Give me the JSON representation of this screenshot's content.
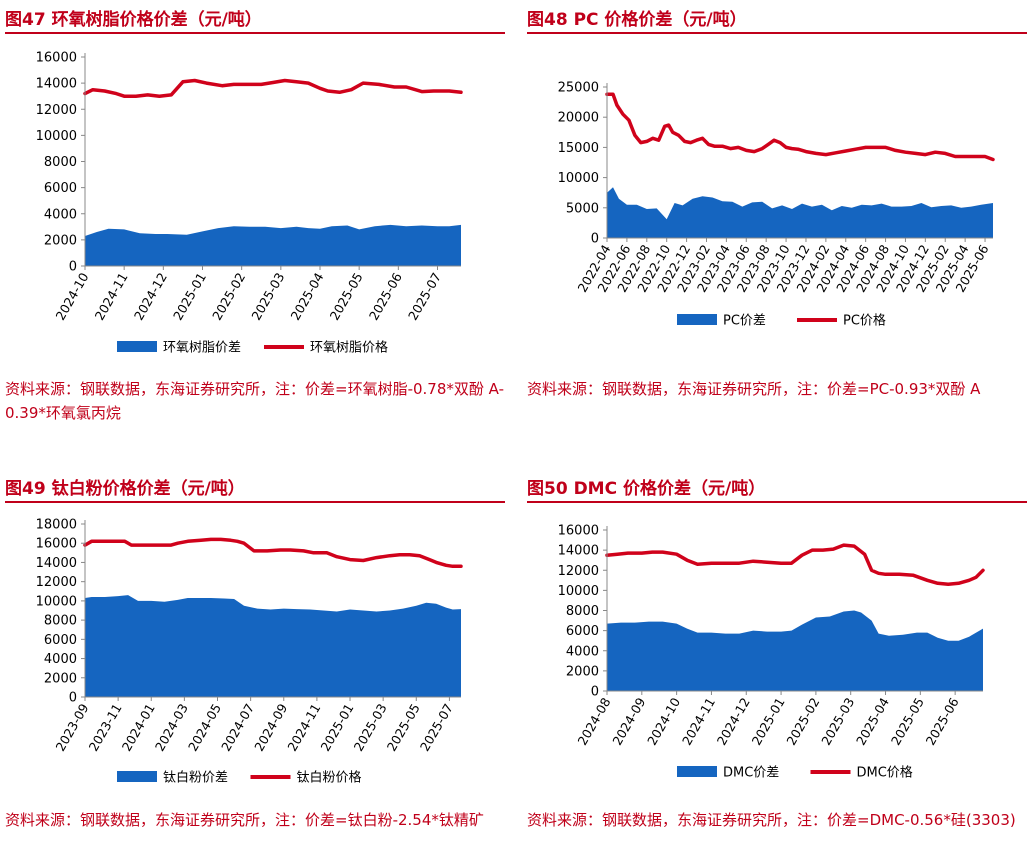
{
  "colors": {
    "accent": "#c0001a",
    "area": "#1565c0",
    "line": "#d0021b"
  },
  "panels": [
    {
      "title": "图47  环氧树脂价格价差（元/吨）",
      "source": "资料来源：钢联数据，东海证券研究所，注：价差=环氧树脂-0.78*双酚 A-0.39*环氧氯丙烷",
      "chart_data": {
        "type": "area",
        "ylim": [
          0,
          16000
        ],
        "yticks": [
          0,
          2000,
          4000,
          6000,
          8000,
          10000,
          12000,
          14000,
          16000
        ],
        "xticks": [
          "2024-10",
          "2024-11",
          "2024-12",
          "2025-01",
          "2025-02",
          "2025-03",
          "2025-04",
          "2025-05",
          "2025-06",
          "2025-07"
        ],
        "xrange": [
          0,
          9.6
        ],
        "series": [
          {
            "name": "环氧树脂价差",
            "kind": "area",
            "x": [
              0,
              0.3,
              0.6,
              1.0,
              1.4,
              1.8,
              2.1,
              2.6,
              3.0,
              3.4,
              3.8,
              4.2,
              4.6,
              5.0,
              5.4,
              5.7,
              6.0,
              6.3,
              6.7,
              7.0,
              7.4,
              7.8,
              8.2,
              8.6,
              9.0,
              9.3,
              9.6
            ],
            "y": [
              2300,
              2600,
              2850,
              2800,
              2500,
              2450,
              2450,
              2400,
              2650,
              2900,
              3050,
              3000,
              3000,
              2900,
              3000,
              2900,
              2850,
              3050,
              3100,
              2800,
              3050,
              3150,
              3050,
              3100,
              3050,
              3050,
              3150
            ]
          },
          {
            "name": "环氧树脂价格",
            "kind": "line",
            "x": [
              0,
              0.2,
              0.5,
              0.8,
              1.0,
              1.3,
              1.6,
              1.9,
              2.2,
              2.5,
              2.8,
              3.1,
              3.5,
              3.8,
              4.1,
              4.5,
              4.8,
              5.1,
              5.4,
              5.7,
              6.0,
              6.2,
              6.5,
              6.8,
              7.1,
              7.5,
              7.9,
              8.2,
              8.6,
              8.9,
              9.3,
              9.6
            ],
            "y": [
              13200,
              13500,
              13400,
              13200,
              13000,
              13000,
              13100,
              13000,
              13100,
              14100,
              14200,
              14000,
              13800,
              13900,
              13900,
              13900,
              14050,
              14200,
              14100,
              14000,
              13600,
              13400,
              13300,
              13500,
              14000,
              13900,
              13700,
              13700,
              13350,
              13400,
              13400,
              13300
            ]
          }
        ],
        "legend": [
          "环氧树脂价差",
          "环氧树脂价格"
        ]
      }
    },
    {
      "title": "图48  PC 价格价差（元/吨）",
      "source": "资料来源：钢联数据，东海证券研究所，注：价差=PC-0.93*双酚 A",
      "chart_data": {
        "type": "area",
        "ylim": [
          0,
          25000
        ],
        "yticks": [
          0,
          5000,
          10000,
          15000,
          20000,
          25000
        ],
        "xticks": [
          "2022-04",
          "2022-06",
          "2022-08",
          "2022-10",
          "2022-12",
          "2023-02",
          "2023-04",
          "2023-06",
          "2023-08",
          "2023-10",
          "2023-12",
          "2024-02",
          "2024-04",
          "2024-06",
          "2024-08",
          "2024-10",
          "2024-12",
          "2025-02",
          "2025-04",
          "2025-06"
        ],
        "xrange": [
          0,
          19.4
        ],
        "series": [
          {
            "name": "PC价差",
            "kind": "area",
            "x": [
              0,
              0.3,
              0.6,
              1.0,
              1.5,
              2.0,
              2.5,
              3.0,
              3.4,
              3.8,
              4.3,
              4.8,
              5.3,
              5.8,
              6.3,
              6.8,
              7.3,
              7.8,
              8.3,
              8.8,
              9.3,
              9.8,
              10.3,
              10.8,
              11.3,
              11.8,
              12.3,
              12.8,
              13.3,
              13.8,
              14.3,
              14.8,
              15.3,
              15.8,
              16.3,
              16.8,
              17.3,
              17.8,
              18.3,
              18.8,
              19.4
            ],
            "y": [
              7500,
              8400,
              6500,
              5500,
              5500,
              4800,
              4900,
              3100,
              5800,
              5400,
              6500,
              6900,
              6700,
              6100,
              6000,
              5200,
              5900,
              6000,
              4900,
              5400,
              4800,
              5700,
              5200,
              5500,
              4600,
              5300,
              5000,
              5500,
              5400,
              5700,
              5200,
              5200,
              5300,
              5800,
              5100,
              5300,
              5400,
              5000,
              5200,
              5500,
              5800
            ]
          },
          {
            "name": "PC价格",
            "kind": "line",
            "x": [
              0,
              0.3,
              0.5,
              0.8,
              1.1,
              1.4,
              1.7,
              2.0,
              2.3,
              2.6,
              2.9,
              3.1,
              3.3,
              3.6,
              3.9,
              4.2,
              4.5,
              4.8,
              5.1,
              5.4,
              5.8,
              6.2,
              6.6,
              7.0,
              7.4,
              7.8,
              8.1,
              8.4,
              8.7,
              9.0,
              9.3,
              9.6,
              10.0,
              10.5,
              11.0,
              11.5,
              12.0,
              12.5,
              13.0,
              13.5,
              14.0,
              14.5,
              15.0,
              15.5,
              16.0,
              16.5,
              17.0,
              17.5,
              18.0,
              18.5,
              19.0,
              19.4
            ],
            "y": [
              23800,
              23800,
              22000,
              20500,
              19500,
              17000,
              15800,
              16000,
              16500,
              16200,
              18500,
              18700,
              17500,
              17000,
              16000,
              15800,
              16200,
              16500,
              15500,
              15200,
              15200,
              14800,
              15000,
              14500,
              14300,
              14800,
              15500,
              16200,
              15800,
              15000,
              14800,
              14700,
              14300,
              14000,
              13800,
              14100,
              14400,
              14700,
              15000,
              15000,
              15000,
              14500,
              14200,
              14000,
              13800,
              14200,
              14000,
              13500,
              13500,
              13500,
              13500,
              13000
            ]
          }
        ],
        "legend": [
          "PC价差",
          "PC价格"
        ]
      }
    },
    {
      "title": "图49  钛白粉价格价差（元/吨）",
      "source": "资料来源：钢联数据，东海证券研究所，注：价差=钛白粉-2.54*钛精矿",
      "chart_data": {
        "type": "area",
        "ylim": [
          0,
          18000
        ],
        "yticks": [
          0,
          2000,
          4000,
          6000,
          8000,
          10000,
          12000,
          14000,
          16000,
          18000
        ],
        "xticks": [
          "2023-09",
          "2023-11",
          "2024-01",
          "2024-03",
          "2024-05",
          "2024-07",
          "2024-09",
          "2024-11",
          "2025-01",
          "2025-03",
          "2025-05",
          "2025-07"
        ],
        "xrange": [
          0,
          11.35
        ],
        "series": [
          {
            "name": "钛白粉价差",
            "kind": "area",
            "x": [
              0,
              0.2,
              0.6,
              1.0,
              1.3,
              1.6,
              2.0,
              2.4,
              2.8,
              3.1,
              3.4,
              3.8,
              4.2,
              4.5,
              4.8,
              5.2,
              5.6,
              6.0,
              6.4,
              6.8,
              7.2,
              7.6,
              8.0,
              8.4,
              8.8,
              9.2,
              9.6,
              10.0,
              10.3,
              10.6,
              10.9,
              11.1,
              11.35
            ],
            "y": [
              10300,
              10400,
              10400,
              10500,
              10600,
              10000,
              10000,
              9900,
              10100,
              10300,
              10300,
              10300,
              10250,
              10200,
              9500,
              9200,
              9100,
              9200,
              9150,
              9100,
              9000,
              8900,
              9100,
              9000,
              8900,
              9000,
              9200,
              9500,
              9800,
              9700,
              9300,
              9100,
              9150
            ]
          },
          {
            "name": "钛白粉价格",
            "kind": "line",
            "x": [
              0,
              0.2,
              0.6,
              1.0,
              1.2,
              1.4,
              1.8,
              2.2,
              2.6,
              2.8,
              3.1,
              3.5,
              3.8,
              4.1,
              4.4,
              4.6,
              4.8,
              5.1,
              5.5,
              5.9,
              6.2,
              6.6,
              6.9,
              7.3,
              7.6,
              8.0,
              8.4,
              8.8,
              9.2,
              9.5,
              9.8,
              10.1,
              10.4,
              10.6,
              10.9,
              11.1,
              11.35
            ],
            "y": [
              15800,
              16200,
              16200,
              16200,
              16200,
              15800,
              15800,
              15800,
              15800,
              16000,
              16200,
              16300,
              16400,
              16400,
              16300,
              16200,
              16000,
              15200,
              15200,
              15300,
              15300,
              15200,
              15000,
              15000,
              14600,
              14300,
              14200,
              14500,
              14700,
              14800,
              14800,
              14700,
              14300,
              14000,
              13700,
              13600,
              13600
            ]
          }
        ],
        "legend": [
          "钛白粉价差",
          "钛白粉价格"
        ]
      }
    },
    {
      "title": "图50  DMC 价格价差（元/吨）",
      "source": "资料来源：钢联数据，东海证券研究所，注：价差=DMC-0.56*硅(3303)",
      "chart_data": {
        "type": "area",
        "ylim": [
          0,
          16000
        ],
        "yticks": [
          0,
          2000,
          4000,
          6000,
          8000,
          10000,
          12000,
          14000,
          16000
        ],
        "xticks": [
          "2024-08",
          "2024-09",
          "2024-10",
          "2024-11",
          "2024-12",
          "2025-01",
          "2025-02",
          "2025-03",
          "2025-04",
          "2025-05",
          "2025-06"
        ],
        "xrange": [
          0,
          10.8
        ],
        "series": [
          {
            "name": "DMC价差",
            "kind": "area",
            "x": [
              0,
              0.4,
              0.8,
              1.2,
              1.6,
              2.0,
              2.3,
              2.6,
              3.0,
              3.4,
              3.8,
              4.2,
              4.6,
              5.0,
              5.3,
              5.6,
              6.0,
              6.4,
              6.8,
              7.1,
              7.3,
              7.6,
              7.8,
              8.1,
              8.5,
              8.9,
              9.2,
              9.5,
              9.8,
              10.1,
              10.4,
              10.8
            ],
            "y": [
              6700,
              6800,
              6800,
              6900,
              6900,
              6700,
              6200,
              5800,
              5800,
              5700,
              5700,
              6000,
              5900,
              5900,
              6000,
              6600,
              7300,
              7400,
              7900,
              8000,
              7800,
              7000,
              5700,
              5500,
              5600,
              5800,
              5800,
              5300,
              5000,
              5000,
              5400,
              6200
            ]
          },
          {
            "name": "DMC价格",
            "kind": "line",
            "x": [
              0,
              0.3,
              0.6,
              1.0,
              1.3,
              1.6,
              2.0,
              2.3,
              2.6,
              3.0,
              3.4,
              3.8,
              4.2,
              4.6,
              5.0,
              5.3,
              5.6,
              5.9,
              6.2,
              6.5,
              6.8,
              7.1,
              7.4,
              7.6,
              7.8,
              8.0,
              8.4,
              8.8,
              9.2,
              9.5,
              9.8,
              10.1,
              10.4,
              10.6,
              10.8
            ],
            "y": [
              13500,
              13600,
              13700,
              13700,
              13800,
              13800,
              13600,
              13000,
              12600,
              12700,
              12700,
              12700,
              12900,
              12800,
              12700,
              12700,
              13500,
              14000,
              14000,
              14100,
              14500,
              14400,
              13600,
              12000,
              11700,
              11600,
              11600,
              11500,
              11000,
              10700,
              10600,
              10700,
              11000,
              11300,
              12000
            ]
          }
        ],
        "legend": [
          "DMC价差",
          "DMC价格"
        ]
      }
    }
  ]
}
